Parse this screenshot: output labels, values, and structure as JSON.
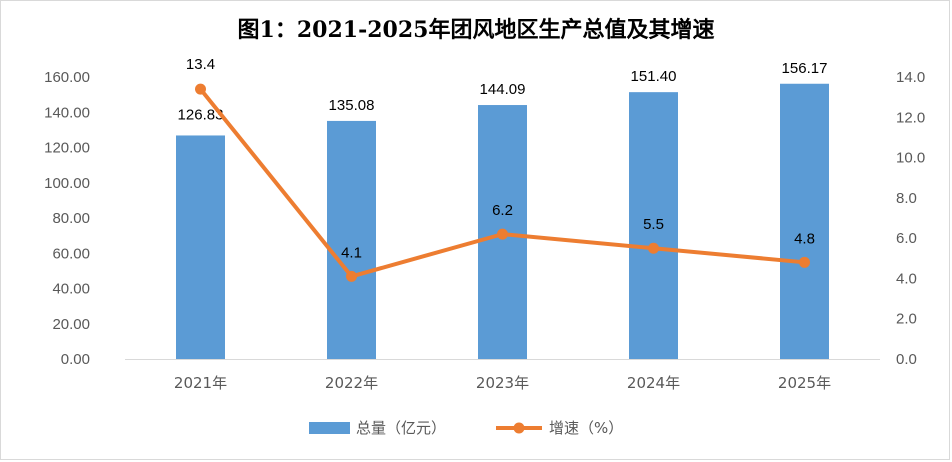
{
  "chart_data": {
    "type": "bar+line",
    "title": "图1：2021-2025年团风地区生产总值及其增速",
    "categories": [
      "2021年",
      "2022年",
      "2023年",
      "2024年",
      "2025年"
    ],
    "series": [
      {
        "name": "总量（亿元）",
        "type": "bar",
        "axis": "left",
        "color": "#5b9bd5",
        "values": [
          126.83,
          135.08,
          144.09,
          151.4,
          156.17
        ],
        "labels": [
          "126.83",
          "135.08",
          "144.09",
          "151.40",
          "156.17"
        ]
      },
      {
        "name": "增速（%）",
        "type": "line",
        "axis": "right",
        "color": "#ed7d31",
        "values": [
          13.4,
          4.1,
          6.2,
          5.5,
          4.8
        ],
        "labels": [
          "13.4",
          "4.1",
          "6.2",
          "5.5",
          "4.8"
        ]
      }
    ],
    "y_left": {
      "min": 0,
      "max": 160,
      "step": 20,
      "ticks": [
        "0.00",
        "20.00",
        "40.00",
        "60.00",
        "80.00",
        "100.00",
        "120.00",
        "140.00",
        "160.00"
      ]
    },
    "y_right": {
      "min": 0,
      "max": 14,
      "step": 2,
      "ticks": [
        "0.0",
        "2.0",
        "4.0",
        "6.0",
        "8.0",
        "10.0",
        "12.0",
        "14.0"
      ]
    },
    "grid": false,
    "legend_position": "bottom"
  }
}
